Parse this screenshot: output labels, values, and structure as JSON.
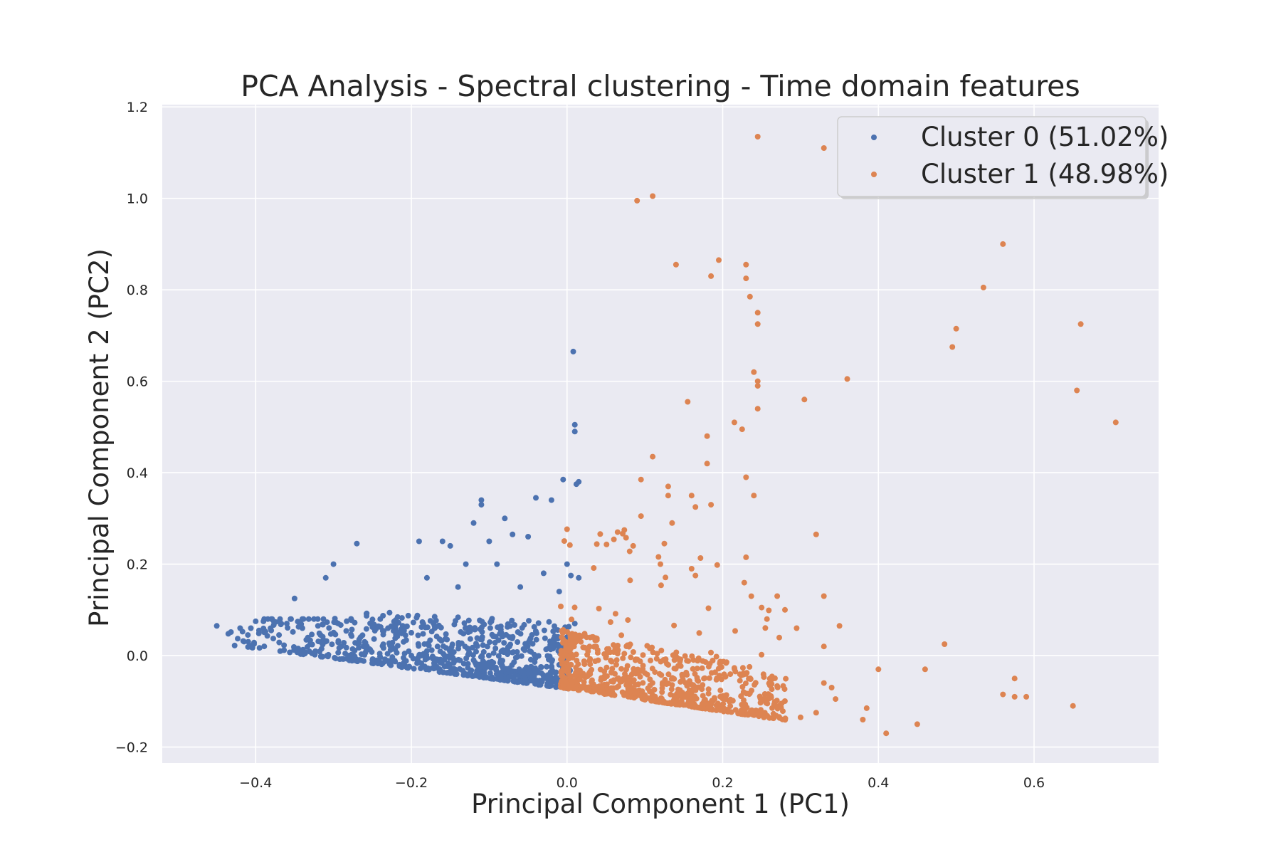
{
  "chart_data": {
    "type": "scatter",
    "title": "PCA Analysis - Spectral clustering - Time domain features",
    "xlabel": "Principal Component 1 (PC1)",
    "ylabel": "Principal Component 2 (PC2)",
    "xlim": [
      -0.52,
      0.76
    ],
    "ylim": [
      -0.235,
      1.205
    ],
    "xticks": [
      -0.4,
      -0.2,
      0.0,
      0.2,
      0.4,
      0.6
    ],
    "xtick_labels": [
      "−0.4",
      "−0.2",
      "0.0",
      "0.2",
      "0.4",
      "0.6"
    ],
    "yticks": [
      -0.2,
      0.0,
      0.2,
      0.4,
      0.6,
      0.8,
      1.0,
      1.2
    ],
    "ytick_labels": [
      "−0.2",
      "0.0",
      "0.2",
      "0.4",
      "0.6",
      "0.8",
      "1.0",
      "1.2"
    ],
    "grid": true,
    "background": "#eaeaf2",
    "legend_position": "top-right",
    "series": [
      {
        "name": "Cluster 0 (51.02%)",
        "color": "#4c72b0",
        "points": [
          [
            -0.45,
            0.065
          ],
          [
            -0.42,
            0.06
          ],
          [
            -0.41,
            0.045
          ],
          [
            -0.4,
            0.075
          ],
          [
            -0.39,
            0.075
          ],
          [
            -0.38,
            0.055
          ],
          [
            -0.37,
            0.045
          ],
          [
            -0.36,
            0.07
          ],
          [
            -0.35,
            0.125
          ],
          [
            -0.34,
            0.06
          ],
          [
            -0.33,
            0.025
          ],
          [
            -0.32,
            0.065
          ],
          [
            -0.31,
            0.17
          ],
          [
            -0.3,
            0.2
          ],
          [
            -0.29,
            0.02
          ],
          [
            -0.28,
            0.0
          ],
          [
            -0.27,
            0.245
          ],
          [
            -0.26,
            0.03
          ],
          [
            -0.25,
            -0.01
          ],
          [
            -0.24,
            0.08
          ],
          [
            -0.23,
            0.06
          ],
          [
            -0.21,
            0.03
          ],
          [
            -0.2,
            0.05
          ],
          [
            -0.19,
            0.25
          ],
          [
            -0.18,
            0.17
          ],
          [
            -0.17,
            0.085
          ],
          [
            -0.16,
            0.25
          ],
          [
            -0.15,
            0.24
          ],
          [
            -0.14,
            0.15
          ],
          [
            -0.13,
            0.2
          ],
          [
            -0.12,
            0.29
          ],
          [
            -0.11,
            0.34
          ],
          [
            -0.11,
            0.33
          ],
          [
            -0.1,
            0.25
          ],
          [
            -0.09,
            0.2
          ],
          [
            -0.08,
            0.3
          ],
          [
            -0.07,
            0.265
          ],
          [
            -0.06,
            0.15
          ],
          [
            -0.05,
            0.26
          ],
          [
            -0.04,
            0.345
          ],
          [
            -0.03,
            0.18
          ],
          [
            -0.02,
            0.34
          ],
          [
            -0.01,
            0.14
          ],
          [
            -0.005,
            0.385
          ],
          [
            0.0,
            0.2
          ],
          [
            0.005,
            0.175
          ],
          [
            0.008,
            0.665
          ],
          [
            0.01,
            0.505
          ],
          [
            0.01,
            0.49
          ],
          [
            0.012,
            0.375
          ],
          [
            0.015,
            0.38
          ],
          [
            0.015,
            0.17
          ],
          [
            0.01,
            0.07
          ],
          [
            0.005,
            0.04
          ],
          [
            0.0,
            0.0
          ],
          [
            -0.01,
            -0.02
          ],
          [
            -0.03,
            -0.05
          ],
          [
            -0.05,
            -0.04
          ],
          [
            -0.08,
            -0.03
          ],
          [
            -0.1,
            -0.02
          ],
          [
            -0.12,
            -0.01
          ],
          [
            -0.15,
            0.0
          ],
          [
            -0.18,
            0.01
          ],
          [
            -0.2,
            0.0
          ]
        ],
        "cloud": {
          "density_region": "dense wedge between PC1 -0.45 and 0.0, PC2 -0.07 and 0.2",
          "count": 780
        }
      },
      {
        "name": "Cluster 1 (48.98%)",
        "color": "#dd8452",
        "points": [
          [
            0.09,
            0.995
          ],
          [
            0.11,
            1.005
          ],
          [
            0.245,
            1.135
          ],
          [
            0.33,
            1.11
          ],
          [
            0.14,
            0.855
          ],
          [
            0.185,
            0.83
          ],
          [
            0.195,
            0.865
          ],
          [
            0.23,
            0.855
          ],
          [
            0.23,
            0.825
          ],
          [
            0.235,
            0.785
          ],
          [
            0.245,
            0.75
          ],
          [
            0.245,
            0.725
          ],
          [
            0.24,
            0.62
          ],
          [
            0.245,
            0.6
          ],
          [
            0.245,
            0.59
          ],
          [
            0.245,
            0.54
          ],
          [
            0.155,
            0.555
          ],
          [
            0.305,
            0.56
          ],
          [
            0.36,
            0.605
          ],
          [
            0.56,
            0.9
          ],
          [
            0.535,
            0.805
          ],
          [
            0.5,
            0.715
          ],
          [
            0.495,
            0.675
          ],
          [
            0.66,
            0.725
          ],
          [
            0.655,
            0.58
          ],
          [
            0.705,
            0.51
          ],
          [
            0.215,
            0.51
          ],
          [
            0.225,
            0.495
          ],
          [
            0.18,
            0.48
          ],
          [
            0.11,
            0.435
          ],
          [
            0.18,
            0.42
          ],
          [
            0.23,
            0.39
          ],
          [
            0.24,
            0.35
          ],
          [
            0.095,
            0.385
          ],
          [
            0.13,
            0.37
          ],
          [
            0.13,
            0.35
          ],
          [
            0.16,
            0.35
          ],
          [
            0.165,
            0.325
          ],
          [
            0.185,
            0.33
          ],
          [
            0.095,
            0.305
          ],
          [
            0.135,
            0.29
          ],
          [
            0.065,
            0.27
          ],
          [
            0.125,
            0.245
          ],
          [
            0.085,
            0.24
          ],
          [
            0.32,
            0.265
          ],
          [
            0.23,
            0.215
          ],
          [
            0.12,
            0.2
          ],
          [
            0.16,
            0.19
          ],
          [
            0.165,
            0.175
          ],
          [
            0.25,
            0.105
          ],
          [
            0.27,
            0.13
          ],
          [
            0.33,
            0.13
          ],
          [
            0.28,
            0.1
          ],
          [
            0.295,
            0.06
          ],
          [
            0.35,
            0.065
          ],
          [
            0.33,
            0.02
          ],
          [
            0.485,
            0.025
          ],
          [
            0.4,
            -0.03
          ],
          [
            0.46,
            -0.03
          ],
          [
            0.575,
            -0.05
          ],
          [
            0.56,
            -0.085
          ],
          [
            0.575,
            -0.09
          ],
          [
            0.59,
            -0.09
          ],
          [
            0.65,
            -0.11
          ],
          [
            0.385,
            -0.115
          ],
          [
            0.38,
            -0.14
          ],
          [
            0.41,
            -0.17
          ],
          [
            0.45,
            -0.15
          ],
          [
            0.3,
            -0.135
          ],
          [
            0.32,
            -0.125
          ],
          [
            0.33,
            -0.06
          ],
          [
            0.34,
            -0.07
          ],
          [
            0.345,
            -0.095
          ]
        ],
        "cloud": {
          "density_region": "dense wedge between PC1 -0.01 and 0.3, PC2 -0.15 and 0.2",
          "count": 740
        }
      }
    ]
  }
}
